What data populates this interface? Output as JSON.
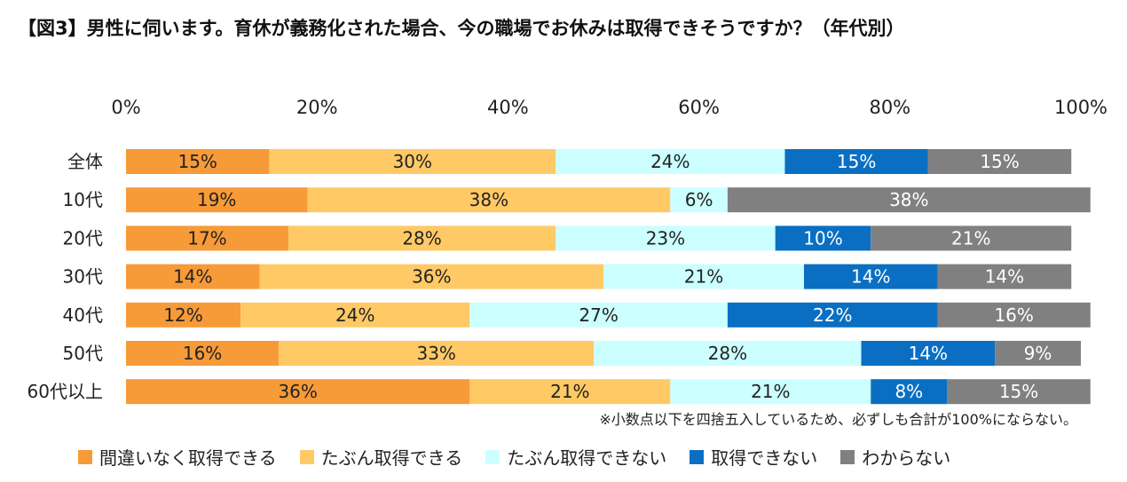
{
  "title": "【図3】男性に伺います。育休が義務化された場合、今の職場でお休みは取得できそうですか？（年代別）",
  "note": "※小数点以下を四捨五入しているため、必ずしも合計が100%にならない。",
  "chart_data": {
    "type": "bar",
    "orientation": "horizontal",
    "stacked": true,
    "title": "【図3】男性に伺います。育休が義務化された場合、今の職場でお休みは取得できそうですか？（年代別）",
    "xlim": [
      0,
      100
    ],
    "x_ticks": [
      "0%",
      "20%",
      "40%",
      "60%",
      "80%",
      "100%"
    ],
    "categories": [
      "全体",
      "10代",
      "20代",
      "30代",
      "40代",
      "50代",
      "60代以上"
    ],
    "series": [
      {
        "name": "間違いなく取得できる",
        "color": "#F79A38",
        "label_color": "#222222",
        "values": [
          15,
          19,
          17,
          14,
          12,
          16,
          36
        ]
      },
      {
        "name": "たぶん取得できる",
        "color": "#FFC966",
        "label_color": "#222222",
        "values": [
          30,
          38,
          28,
          36,
          24,
          33,
          21
        ]
      },
      {
        "name": "たぶん取得できない",
        "color": "#CCFFFF",
        "label_color": "#222222",
        "values": [
          24,
          6,
          23,
          21,
          27,
          28,
          21
        ]
      },
      {
        "name": "取得できない",
        "color": "#0A6FC2",
        "label_color": "#ffffff",
        "values": [
          15,
          0,
          10,
          14,
          22,
          14,
          8
        ]
      },
      {
        "name": "わからない",
        "color": "#808080",
        "label_color": "#ffffff",
        "values": [
          15,
          38,
          21,
          14,
          16,
          9,
          15
        ]
      }
    ],
    "legend_position": "bottom",
    "grid": false
  }
}
